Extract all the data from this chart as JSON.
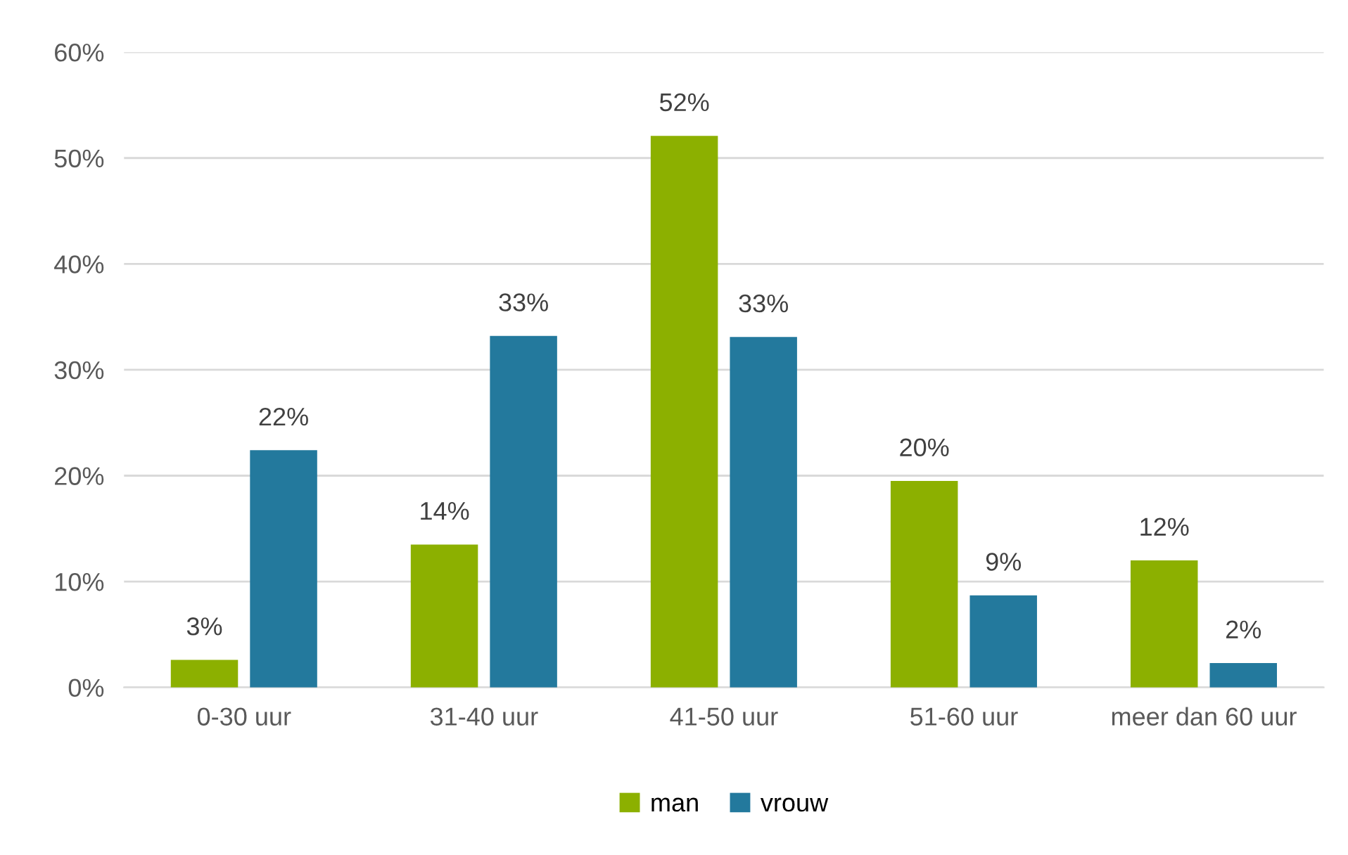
{
  "chart_data": {
    "type": "bar",
    "categories": [
      "0-30 uur",
      "31-40 uur",
      "41-50 uur",
      "51-60 uur",
      "meer dan 60 uur"
    ],
    "series": [
      {
        "name": "man",
        "color": "#8cb000",
        "values": [
          2.6,
          13.5,
          52.1,
          19.5,
          12
        ],
        "value_labels": [
          "3%",
          "14%",
          "52%",
          "20%",
          "12%"
        ]
      },
      {
        "name": "vrouw",
        "color": "#23799d",
        "values": [
          22.4,
          33.2,
          33.1,
          8.7,
          2.3
        ],
        "value_labels": [
          "22%",
          "33%",
          "33%",
          "9%",
          "2%"
        ]
      }
    ],
    "ylim": [
      0,
      60
    ],
    "yticks": [
      {
        "value": 0,
        "label": "0%"
      },
      {
        "value": 10,
        "label": "10%"
      },
      {
        "value": 20,
        "label": "20%"
      },
      {
        "value": 30,
        "label": "30%"
      },
      {
        "value": 40,
        "label": "40%"
      },
      {
        "value": 50,
        "label": "50%"
      },
      {
        "value": 60,
        "label": "60%"
      }
    ],
    "grid": "y",
    "legend": "bottom"
  }
}
